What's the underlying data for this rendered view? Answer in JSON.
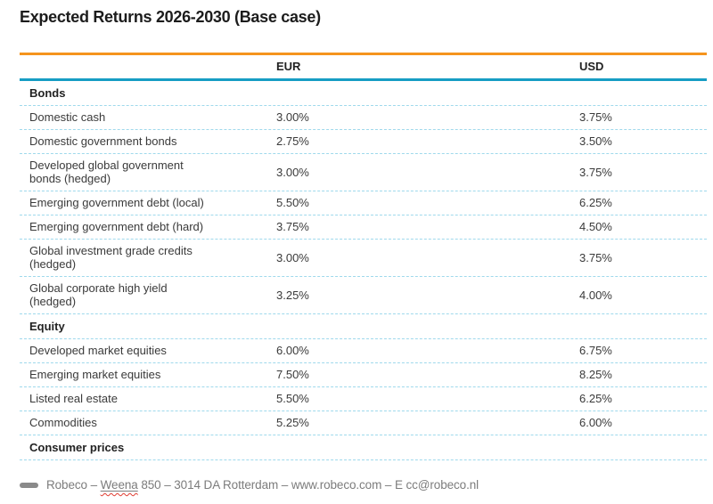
{
  "title": "Expected Returns 2026-2030 (Base case)",
  "table": {
    "col_label_header": "",
    "col_eur": "EUR",
    "col_usd": "USD",
    "rows": [
      {
        "type": "section",
        "label": "Bonds"
      },
      {
        "type": "data",
        "label": "Domestic cash",
        "eur": "3.00%",
        "usd": "3.75%"
      },
      {
        "type": "data",
        "label": "Domestic government bonds",
        "eur": "2.75%",
        "usd": "3.50%"
      },
      {
        "type": "data",
        "label": "Developed global government\nbonds (hedged)",
        "eur": "3.00%",
        "usd": "3.75%"
      },
      {
        "type": "data",
        "label": "Emerging government debt (local)",
        "eur": "5.50%",
        "usd": "6.25%"
      },
      {
        "type": "data",
        "label": "Emerging government debt (hard)",
        "eur": "3.75%",
        "usd": "4.50%"
      },
      {
        "type": "data",
        "label": "Global investment grade credits\n(hedged)",
        "eur": "3.00%",
        "usd": "3.75%"
      },
      {
        "type": "data",
        "label": "Global corporate high yield\n(hedged)",
        "eur": "3.25%",
        "usd": "4.00%"
      },
      {
        "type": "section",
        "label": "Equity"
      },
      {
        "type": "data",
        "label": "Developed market equities",
        "eur": "6.00%",
        "usd": "6.75%"
      },
      {
        "type": "data",
        "label": "Emerging market equities",
        "eur": "7.50%",
        "usd": "8.25%"
      },
      {
        "type": "data",
        "label": "Listed real estate",
        "eur": "5.50%",
        "usd": "6.25%"
      },
      {
        "type": "data",
        "label": "Commodities",
        "eur": "5.25%",
        "usd": "6.00%"
      },
      {
        "type": "section",
        "label": "Consumer prices"
      }
    ]
  },
  "footer": {
    "brand_prefix": "Robeco – ",
    "link_text": "Weena",
    "suffix": " 850 – 3014 DA Rotterdam – www.robeco.com – E cc@robeco.nl"
  },
  "colors": {
    "accent_orange": "#F5941D",
    "accent_teal": "#169DC4",
    "dashed_line": "#9FD9EC",
    "footer_bar": "#8A8A8A",
    "squiggle_red": "#E03C31",
    "title_text": "#1C1C1C",
    "body_text": "#3A3A3A",
    "footer_text": "#7C7C7C"
  }
}
